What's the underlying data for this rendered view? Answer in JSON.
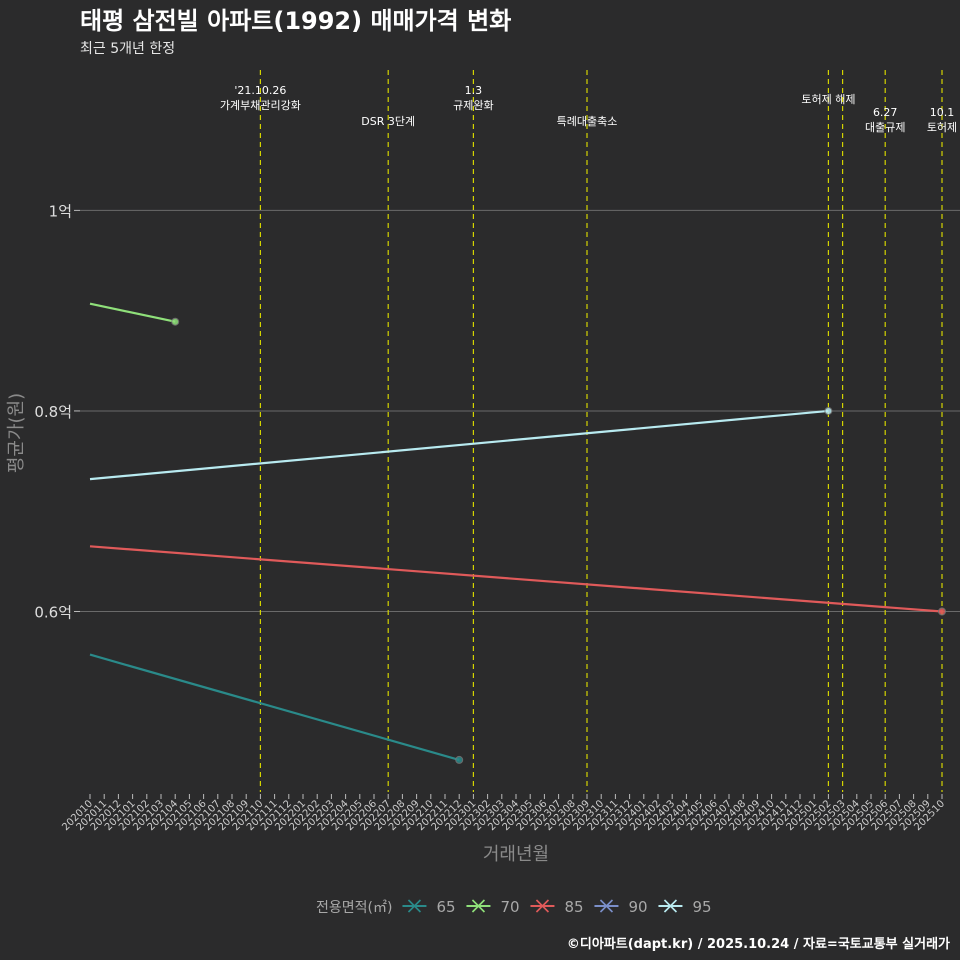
{
  "chart_data": {
    "type": "line",
    "title": "태평 삼전빌 아파트(1992) 매매가격 변화",
    "subtitle": "최근 5개년 한정",
    "xlabel": "거래년월",
    "ylabel": "평균가(원)",
    "caption": "©디아파트(dapt.kr) / 2025.10.24 / 자료=국토교통부 실거래가",
    "ylim": [
      0.42,
      1.14
    ],
    "y_ticks": [
      {
        "value": 0.6,
        "label": "0.6억"
      },
      {
        "value": 0.8,
        "label": "0.8억"
      },
      {
        "value": 1.0,
        "label": "1억"
      }
    ],
    "x_categories": [
      "202010",
      "202011",
      "202012",
      "202101",
      "202102",
      "202103",
      "202104",
      "202105",
      "202106",
      "202107",
      "202108",
      "202109",
      "202110",
      "202111",
      "202112",
      "202201",
      "202202",
      "202203",
      "202204",
      "202205",
      "202206",
      "202207",
      "202208",
      "202209",
      "202210",
      "202211",
      "202212",
      "202301",
      "202302",
      "202303",
      "202304",
      "202305",
      "202306",
      "202307",
      "202308",
      "202309",
      "202310",
      "202311",
      "202312",
      "202401",
      "202402",
      "202403",
      "202404",
      "202405",
      "202406",
      "202407",
      "202408",
      "202409",
      "202410",
      "202411",
      "202412",
      "202501",
      "202502",
      "202503",
      "202504",
      "202505",
      "202506",
      "202507",
      "202508",
      "202509",
      "202510"
    ],
    "series": [
      {
        "name": "65",
        "color": "#2a8a8a",
        "points": [
          {
            "x": "202010",
            "y": 0.557
          },
          {
            "x": "202212",
            "y": 0.452
          }
        ],
        "marker_at": "202212"
      },
      {
        "name": "70",
        "color": "#8fe07a",
        "points": [
          {
            "x": "202010",
            "y": 0.907
          },
          {
            "x": "202104",
            "y": 0.889
          }
        ],
        "marker_at": "202104"
      },
      {
        "name": "85",
        "color": "#e05a5a",
        "points": [
          {
            "x": "202010",
            "y": 0.665
          },
          {
            "x": "202510",
            "y": 0.6
          }
        ],
        "marker_at": "202510"
      },
      {
        "name": "90",
        "color": "#7b8fc9",
        "points": []
      },
      {
        "name": "95",
        "color": "#b8eaf0",
        "points": [
          {
            "x": "202010",
            "y": 0.732
          },
          {
            "x": "202502",
            "y": 0.8
          }
        ],
        "marker_at": "202502"
      }
    ],
    "legend_title": "전용면적(㎡)",
    "legend_position": "bottom",
    "events": [
      {
        "x": "202110",
        "lines": [
          "'21.10.26",
          "가계부채관리강화"
        ],
        "row": "high"
      },
      {
        "x": "202207",
        "lines": [
          "DSR 3단계"
        ],
        "row": "mid"
      },
      {
        "x": "202301",
        "lines": [
          "1.3",
          "규제완화"
        ],
        "row": "high"
      },
      {
        "x": "202309",
        "lines": [
          "특례대출축소"
        ],
        "row": "mid"
      },
      {
        "x": "202502",
        "lines": [
          "토허제 해제"
        ],
        "row": "top2"
      },
      {
        "x": "202503",
        "lines": [],
        "row": "none"
      },
      {
        "x": "202506",
        "lines": [
          "6.27",
          "대출규제"
        ],
        "row": "low"
      },
      {
        "x": "202510",
        "lines": [
          "10.1",
          "토허제"
        ],
        "row": "low"
      }
    ]
  }
}
